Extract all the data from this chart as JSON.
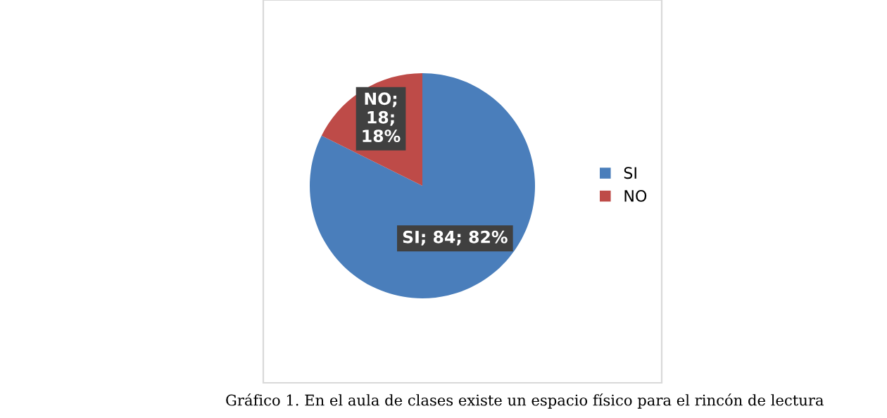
{
  "chart_data": {
    "type": "pie",
    "categories": [
      "SI",
      "NO"
    ],
    "values": [
      84,
      18
    ],
    "colors": [
      "#4a7ebb",
      "#be4b48"
    ],
    "value_labels": [
      "SI; 84; 82%",
      "NO; 18; 18%"
    ],
    "legend": "right",
    "annotations": [
      "Gráfico 1. En el aula de clases existe un espacio físico para el rincón de lectura"
    ]
  }
}
